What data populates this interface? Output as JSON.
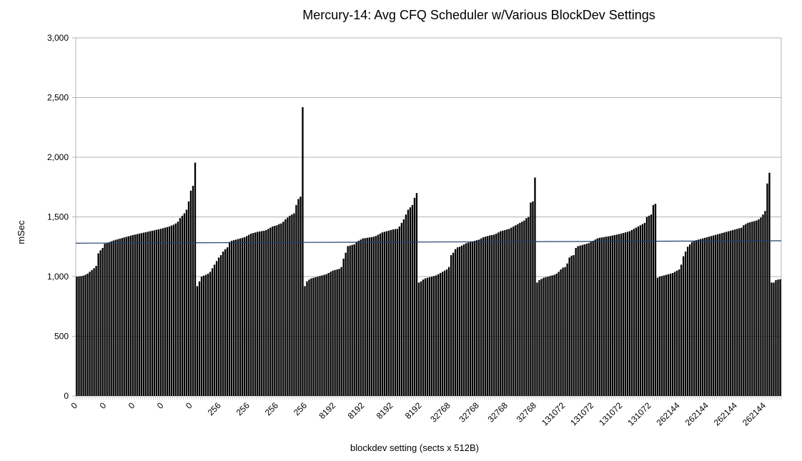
{
  "chart_data": {
    "type": "bar",
    "title": "Mercury-14: Avg CFQ Scheduler w/Various BlockDev Settings",
    "xlabel": "blockdev setting (sects x 512B)",
    "ylabel": "mSec",
    "ylim": [
      0,
      3000
    ],
    "yticks": [
      "0",
      "500",
      "1,000",
      "1,500",
      "2,000",
      "2,500",
      "3,000"
    ],
    "ytick_values": [
      0,
      500,
      1000,
      1500,
      2000,
      2500,
      3000
    ],
    "grid": true,
    "bar_color": "#000000",
    "line_color": "#1f3f6f",
    "trend_line": [
      1280,
      1300
    ],
    "xtick_labels": [
      "0",
      "0",
      "0",
      "0",
      "0",
      "256",
      "256",
      "256",
      "256",
      "8192",
      "8192",
      "8192",
      "8192",
      "32768",
      "32768",
      "32768",
      "32768",
      "131072",
      "131072",
      "131072",
      "131072",
      "262144",
      "262144",
      "262144",
      "262144"
    ],
    "groups": [
      {
        "setting": "0",
        "values": [
          1000,
          1002,
          1004,
          1008,
          1015,
          1025,
          1040,
          1055,
          1070,
          1090,
          1195,
          1220,
          1240,
          1275,
          1282,
          1288,
          1295,
          1302,
          1308,
          1313,
          1318,
          1323,
          1328,
          1333,
          1338,
          1343,
          1348,
          1352,
          1356,
          1360,
          1364,
          1368,
          1372,
          1376,
          1380,
          1384,
          1388,
          1392,
          1396,
          1400,
          1405,
          1410,
          1415,
          1420,
          1428,
          1435,
          1445,
          1460,
          1490,
          1510,
          1530,
          1560,
          1630,
          1720,
          1760,
          1955
        ]
      },
      {
        "setting": "256",
        "values": [
          920,
          960,
          1000,
          1008,
          1015,
          1025,
          1040,
          1070,
          1100,
          1130,
          1160,
          1180,
          1210,
          1230,
          1245,
          1290,
          1300,
          1305,
          1310,
          1315,
          1320,
          1325,
          1330,
          1340,
          1350,
          1360,
          1365,
          1370,
          1375,
          1378,
          1381,
          1384,
          1390,
          1400,
          1410,
          1420,
          1425,
          1430,
          1440,
          1445,
          1460,
          1480,
          1495,
          1510,
          1520,
          1530,
          1600,
          1650,
          1670,
          2420
        ]
      },
      {
        "setting": "8192",
        "values": [
          920,
          960,
          975,
          985,
          990,
          995,
          1000,
          1005,
          1010,
          1015,
          1020,
          1030,
          1040,
          1050,
          1055,
          1060,
          1065,
          1080,
          1150,
          1200,
          1255,
          1260,
          1265,
          1270,
          1285,
          1300,
          1310,
          1320,
          1322,
          1325,
          1328,
          1331,
          1334,
          1340,
          1350,
          1360,
          1370,
          1375,
          1380,
          1385,
          1390,
          1395,
          1398,
          1400,
          1420,
          1450,
          1480,
          1520,
          1560,
          1580,
          1600,
          1660,
          1700
        ]
      },
      {
        "setting": "32768",
        "values": [
          950,
          960,
          975,
          985,
          990,
          995,
          1000,
          1005,
          1010,
          1020,
          1030,
          1040,
          1050,
          1060,
          1080,
          1180,
          1200,
          1230,
          1245,
          1250,
          1260,
          1270,
          1280,
          1285,
          1290,
          1295,
          1300,
          1305,
          1310,
          1320,
          1330,
          1335,
          1340,
          1345,
          1348,
          1352,
          1360,
          1370,
          1380,
          1385,
          1390,
          1395,
          1400,
          1410,
          1420,
          1430,
          1440,
          1450,
          1460,
          1470,
          1490,
          1500,
          1620,
          1630,
          1830
        ]
      },
      {
        "setting": "131072",
        "values": [
          950,
          970,
          980,
          990,
          995,
          1000,
          1005,
          1010,
          1015,
          1025,
          1040,
          1060,
          1075,
          1080,
          1110,
          1160,
          1175,
          1180,
          1240,
          1255,
          1260,
          1265,
          1270,
          1275,
          1280,
          1290,
          1300,
          1310,
          1320,
          1325,
          1328,
          1331,
          1334,
          1337,
          1340,
          1344,
          1348,
          1352,
          1356,
          1360,
          1365,
          1370,
          1375,
          1380,
          1390,
          1400,
          1410,
          1420,
          1430,
          1440,
          1450,
          1500,
          1510,
          1520,
          1600,
          1610
        ]
      },
      {
        "setting": "262144",
        "values": [
          990,
          1000,
          1005,
          1010,
          1015,
          1020,
          1025,
          1030,
          1040,
          1050,
          1060,
          1100,
          1170,
          1210,
          1250,
          1270,
          1290,
          1300,
          1305,
          1310,
          1315,
          1320,
          1325,
          1330,
          1335,
          1340,
          1345,
          1350,
          1355,
          1360,
          1365,
          1370,
          1375,
          1380,
          1385,
          1390,
          1395,
          1400,
          1405,
          1410,
          1430,
          1440,
          1450,
          1455,
          1460,
          1465,
          1470,
          1480,
          1495,
          1520,
          1550,
          1780,
          1870,
          950,
          950,
          970,
          975,
          978
        ]
      }
    ]
  }
}
